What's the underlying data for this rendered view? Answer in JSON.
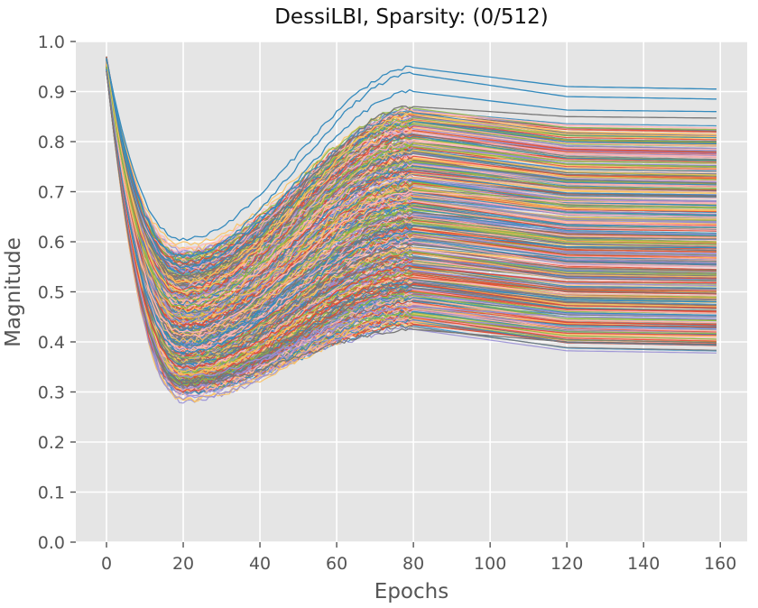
{
  "chart_data": {
    "type": "line",
    "title": "DessiLBI, Sparsity: (0/512)",
    "xlabel": "Epochs",
    "ylabel": "Magnitude",
    "xlim": [
      -8,
      167
    ],
    "ylim": [
      0.0,
      1.0
    ],
    "xticks": [
      0,
      20,
      40,
      60,
      80,
      100,
      120,
      140,
      160
    ],
    "yticks": [
      "0.0",
      "0.1",
      "0.2",
      "0.3",
      "0.4",
      "0.5",
      "0.6",
      "0.7",
      "0.8",
      "0.9",
      "1.0"
    ],
    "grid": true,
    "style": "ggplot",
    "series_count": 512,
    "palette": [
      "#348ABD",
      "#E24A33",
      "#988ED5",
      "#777777",
      "#FBC15E",
      "#8EBA42",
      "#FFB5B8"
    ],
    "colors": {
      "plot_background": "#E5E5E5",
      "grid": "#FFFFFF",
      "tick_text": "#555555",
      "title_text": "#111111"
    },
    "key_points": {
      "epochs": [
        0,
        20,
        80,
        120,
        159
      ],
      "start_magnitude_range": [
        0.94,
        0.97
      ],
      "dip_magnitude_range": [
        0.31,
        0.61
      ],
      "peak_epoch80_range": [
        0.425,
        0.95
      ],
      "plateau_final_range": [
        0.395,
        0.905
      ]
    },
    "representative_series": [
      {
        "x": [
          0,
          20,
          80,
          120,
          159
        ],
        "y": [
          0.965,
          0.605,
          0.948,
          0.91,
          0.905
        ]
      },
      {
        "x": [
          0,
          20,
          80,
          120,
          159
        ],
        "y": [
          0.955,
          0.57,
          0.935,
          0.89,
          0.885
        ]
      },
      {
        "x": [
          0,
          20,
          80,
          120,
          159
        ],
        "y": [
          0.95,
          0.55,
          0.9,
          0.863,
          0.86
        ]
      },
      {
        "x": [
          0,
          20,
          80,
          120,
          159
        ],
        "y": [
          0.95,
          0.53,
          0.87,
          0.85,
          0.847
        ]
      },
      {
        "x": [
          0,
          20,
          80,
          120,
          159
        ],
        "y": [
          0.955,
          0.5,
          0.855,
          0.815,
          0.81
        ]
      },
      {
        "x": [
          0,
          20,
          80,
          120,
          159
        ],
        "y": [
          0.95,
          0.47,
          0.79,
          0.755,
          0.75
        ]
      },
      {
        "x": [
          0,
          20,
          80,
          120,
          159
        ],
        "y": [
          0.945,
          0.42,
          0.7,
          0.68,
          0.676
        ]
      },
      {
        "x": [
          0,
          20,
          80,
          120,
          159
        ],
        "y": [
          0.945,
          0.38,
          0.62,
          0.59,
          0.588
        ]
      },
      {
        "x": [
          0,
          20,
          80,
          120,
          159
        ],
        "y": [
          0.94,
          0.35,
          0.55,
          0.52,
          0.518
        ]
      },
      {
        "x": [
          0,
          20,
          80,
          120,
          159
        ],
        "y": [
          0.94,
          0.33,
          0.47,
          0.45,
          0.446
        ]
      },
      {
        "x": [
          0,
          20,
          80,
          120,
          159
        ],
        "y": [
          0.94,
          0.315,
          0.425,
          0.4,
          0.395
        ]
      }
    ]
  }
}
